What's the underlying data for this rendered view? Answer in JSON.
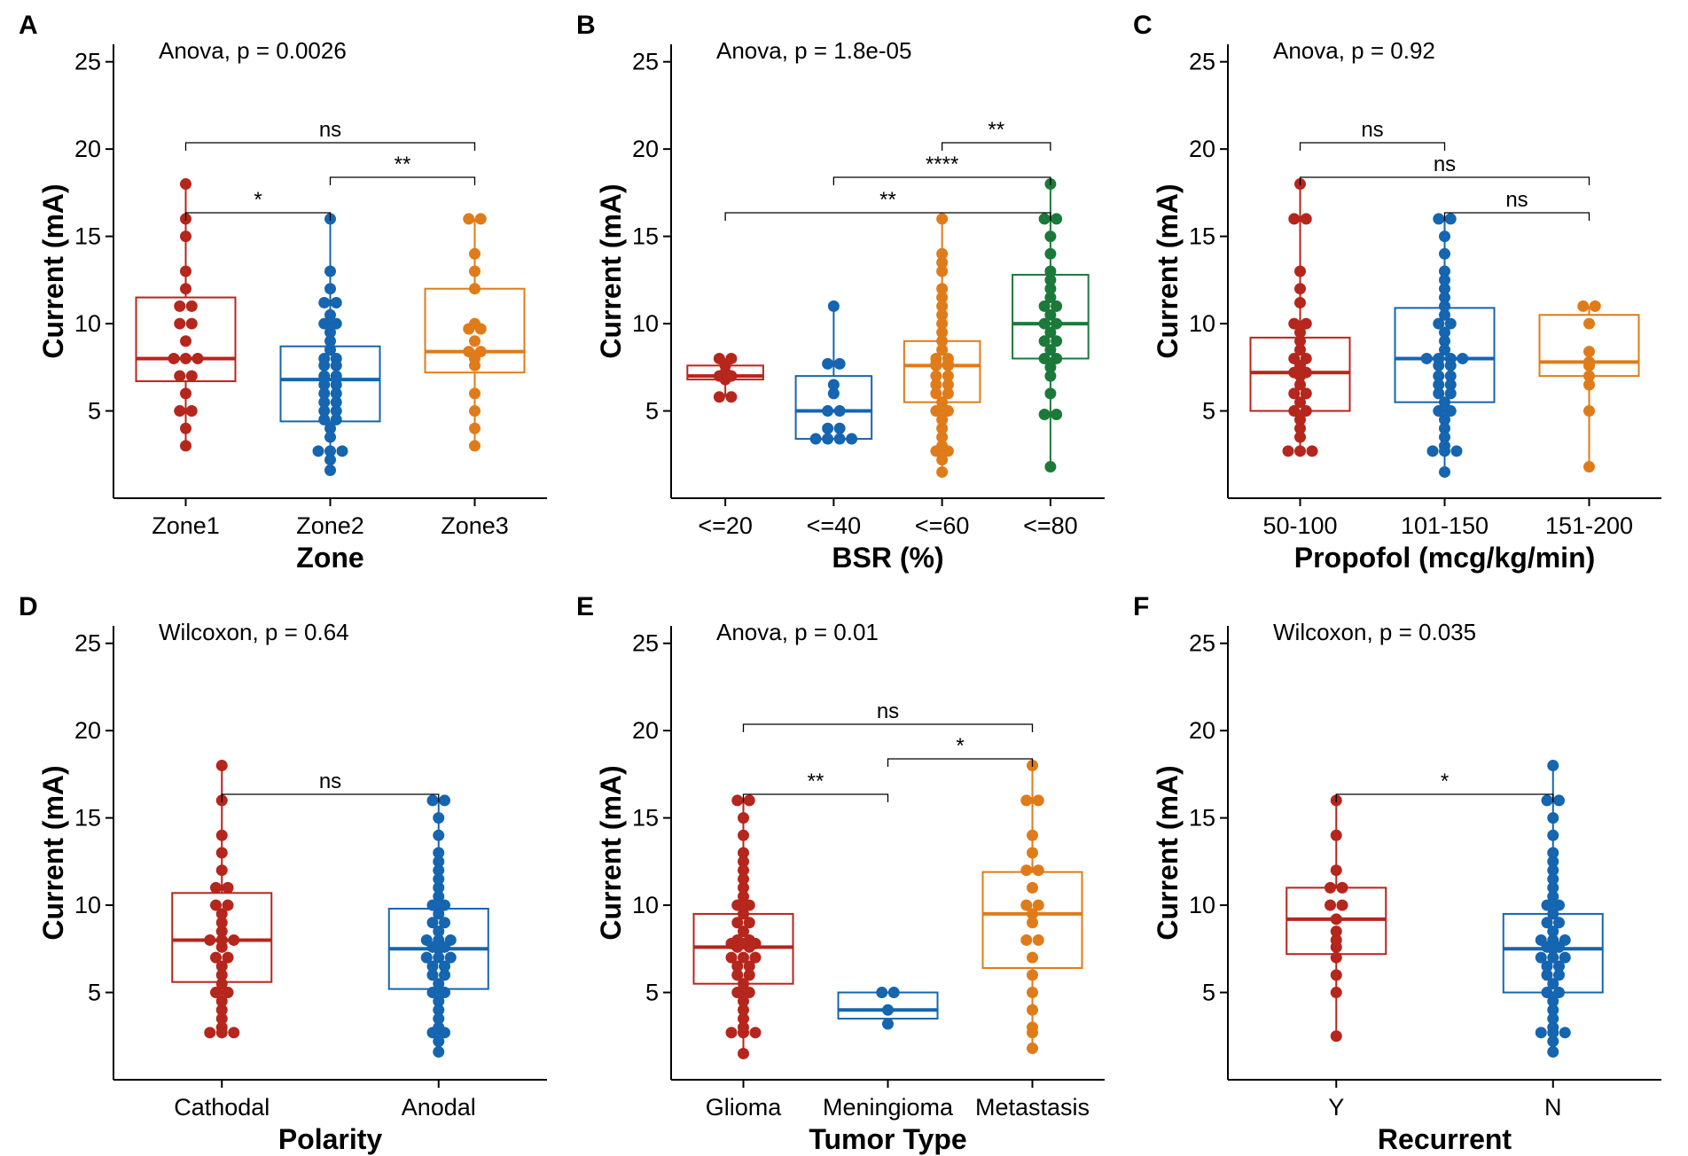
{
  "chart_data": [
    {
      "type": "boxplot",
      "letter": "A",
      "test": "Anova, p = 0.0026",
      "xlabel": "Zone",
      "ylabel": "Current (mA)",
      "ylim": [
        0,
        26
      ],
      "yticks": [
        5,
        10,
        15,
        20,
        25
      ],
      "categories": [
        "Zone1",
        "Zone2",
        "Zone3"
      ],
      "boxes": [
        {
          "color": "#b5261d",
          "q1": 6.7,
          "median": 8.0,
          "q3": 11.5,
          "lower": 3.0,
          "upper": 18.0,
          "points": [
            18,
            16,
            15,
            13,
            12,
            11,
            11,
            10,
            10,
            9,
            8,
            8,
            8,
            7,
            7,
            6,
            5,
            5,
            4,
            3
          ]
        },
        {
          "color": "#1565b0",
          "q1": 4.4,
          "median": 6.8,
          "q3": 8.7,
          "lower": 1.6,
          "upper": 16.0,
          "points": [
            16,
            13,
            12,
            11.2,
            11.2,
            10.5,
            10,
            10,
            9.5,
            9,
            8.5,
            8,
            8,
            7.6,
            7.6,
            7,
            7,
            6.5,
            6.5,
            6,
            6,
            5.5,
            5.5,
            5,
            5,
            4.5,
            4.5,
            4,
            3.5,
            2.7,
            2.7,
            2.7,
            2.2,
            1.6
          ]
        },
        {
          "color": "#e07b1a",
          "q1": 7.2,
          "median": 8.4,
          "q3": 12.0,
          "lower": 3.0,
          "upper": 16.0,
          "points": [
            16,
            16,
            14,
            13,
            12,
            10,
            9.7,
            9.7,
            9,
            8.4,
            8.4,
            8,
            7.6,
            6,
            5,
            4,
            3
          ]
        }
      ],
      "comparisons": [
        {
          "from": 0,
          "to": 2,
          "level": 2,
          "label": "ns"
        },
        {
          "from": 1,
          "to": 2,
          "level": 1,
          "label": "**"
        },
        {
          "from": 0,
          "to": 1,
          "level": 0,
          "label": "*"
        }
      ]
    },
    {
      "type": "boxplot",
      "letter": "B",
      "test": "Anova, p = 1.8e-05",
      "xlabel": "BSR (%)",
      "ylabel": "Current (mA)",
      "ylim": [
        0,
        26
      ],
      "yticks": [
        5,
        10,
        15,
        20,
        25
      ],
      "categories": [
        "<=20",
        "<=40",
        "<=60",
        "<=80"
      ],
      "boxes": [
        {
          "color": "#b5261d",
          "q1": 6.8,
          "median": 7.0,
          "q3": 7.6,
          "lower": 5.8,
          "upper": 8.0,
          "points": [
            8,
            8,
            7.6,
            7.2,
            7,
            7,
            6.8,
            5.8,
            5.8
          ]
        },
        {
          "color": "#1565b0",
          "q1": 3.4,
          "median": 5.0,
          "q3": 7.0,
          "lower": 3.4,
          "upper": 11.0,
          "points": [
            11,
            7.7,
            7.7,
            6.5,
            6,
            5,
            5,
            4,
            4,
            3.4,
            3.4,
            3.4,
            3.4
          ]
        },
        {
          "color": "#e07b1a",
          "q1": 5.5,
          "median": 7.6,
          "q3": 9.0,
          "lower": 1.5,
          "upper": 16.0,
          "points": [
            16,
            14,
            13.5,
            13,
            12,
            11.5,
            11,
            10.5,
            10,
            9.5,
            9,
            8.5,
            8,
            8,
            7.7,
            7.7,
            7.6,
            7.6,
            7,
            7,
            6.5,
            6.5,
            6,
            6,
            5.5,
            5,
            5,
            4.5,
            4,
            3.5,
            3,
            2.7,
            2.7,
            2.2,
            1.5
          ]
        },
        {
          "color": "#1b7a3a",
          "q1": 8.0,
          "median": 10.0,
          "q3": 12.8,
          "lower": 1.8,
          "upper": 18.0,
          "points": [
            18,
            16,
            16,
            15,
            14,
            13,
            12.5,
            12,
            11.5,
            11,
            11,
            10.5,
            10,
            10,
            9.5,
            9,
            9,
            8.5,
            8,
            8,
            7.5,
            7,
            6,
            4.8,
            4.8,
            1.8
          ]
        }
      ],
      "comparisons": [
        {
          "from": 2,
          "to": 3,
          "level": 2,
          "label": "**"
        },
        {
          "from": 1,
          "to": 3,
          "level": 1,
          "label": "****"
        },
        {
          "from": 0,
          "to": 3,
          "level": 0,
          "label": "**"
        }
      ]
    },
    {
      "type": "boxplot",
      "letter": "C",
      "test": "Anova, p = 0.92",
      "xlabel": "Propofol (mcg/kg/min)",
      "ylabel": "Current (mA)",
      "ylim": [
        0,
        26
      ],
      "yticks": [
        5,
        10,
        15,
        20,
        25
      ],
      "categories": [
        "50-100",
        "101-150",
        "151-200"
      ],
      "boxes": [
        {
          "color": "#b5261d",
          "q1": 5.0,
          "median": 7.2,
          "q3": 9.2,
          "lower": 2.7,
          "upper": 18.0,
          "points": [
            18,
            16,
            16,
            13,
            12,
            11.2,
            10,
            10,
            9.5,
            9,
            8.5,
            8,
            8,
            7.6,
            7.2,
            7.2,
            7,
            6.5,
            6,
            6,
            5.5,
            5,
            5,
            4.5,
            4,
            3.5,
            2.7,
            2.7,
            2.7
          ]
        },
        {
          "color": "#1565b0",
          "q1": 5.5,
          "median": 8.0,
          "q3": 10.9,
          "lower": 1.5,
          "upper": 16.0,
          "points": [
            16,
            16,
            15,
            14,
            13,
            12.5,
            12,
            11.5,
            11,
            10.5,
            10,
            10,
            9.5,
            9,
            8.5,
            8,
            8,
            8,
            8,
            7.6,
            7.6,
            7,
            7,
            6.5,
            6.5,
            6,
            6,
            5.5,
            5,
            5,
            4.5,
            4,
            3.5,
            3,
            2.7,
            2.7,
            2.7,
            1.5
          ]
        },
        {
          "color": "#e07b1a",
          "q1": 7.0,
          "median": 7.8,
          "q3": 10.5,
          "lower": 1.8,
          "upper": 11.0,
          "points": [
            11,
            11,
            10,
            8.4,
            7.8,
            7.6,
            7,
            6.5,
            5,
            1.8
          ]
        }
      ],
      "comparisons": [
        {
          "from": 0,
          "to": 1,
          "level": 2,
          "label": "ns"
        },
        {
          "from": 0,
          "to": 2,
          "level": 1,
          "label": "ns"
        },
        {
          "from": 1,
          "to": 2,
          "level": 0,
          "label": "ns"
        }
      ]
    },
    {
      "type": "boxplot",
      "letter": "D",
      "test": "Wilcoxon, p = 0.64",
      "xlabel": "Polarity",
      "ylabel": "Current (mA)",
      "ylim": [
        0,
        26
      ],
      "yticks": [
        5,
        10,
        15,
        20,
        25
      ],
      "categories": [
        "Cathodal",
        "Anodal"
      ],
      "boxes": [
        {
          "color": "#b5261d",
          "q1": 5.6,
          "median": 8.0,
          "q3": 10.7,
          "lower": 2.7,
          "upper": 18.0,
          "points": [
            18,
            16,
            14,
            13,
            12,
            11,
            11,
            10,
            10,
            9.5,
            9,
            8.5,
            8,
            8,
            8,
            7.6,
            7,
            7,
            6.5,
            6,
            5.5,
            5,
            5,
            4.5,
            4,
            3.5,
            3,
            2.7,
            2.7,
            2.7
          ]
        },
        {
          "color": "#1565b0",
          "q1": 5.2,
          "median": 7.5,
          "q3": 9.8,
          "lower": 1.6,
          "upper": 16.0,
          "points": [
            16,
            16,
            15,
            14,
            13,
            12.5,
            12,
            11.5,
            11,
            10.5,
            10,
            10,
            9.5,
            9,
            9,
            8.5,
            8,
            8,
            8,
            7.6,
            7.6,
            7.5,
            7,
            7,
            7,
            6.5,
            6.5,
            6,
            6,
            5.5,
            5,
            5,
            4.5,
            4,
            3.5,
            3,
            2.7,
            2.7,
            2.2,
            1.6
          ]
        }
      ],
      "comparisons": [
        {
          "from": 0,
          "to": 1,
          "level": 0,
          "label": "ns"
        }
      ]
    },
    {
      "type": "boxplot",
      "letter": "E",
      "test": "Anova, p = 0.01",
      "xlabel": "Tumor Type",
      "ylabel": "Current (mA)",
      "ylim": [
        0,
        26
      ],
      "yticks": [
        5,
        10,
        15,
        20,
        25
      ],
      "categories": [
        "Glioma",
        "Meningioma",
        "Metastasis"
      ],
      "boxes": [
        {
          "color": "#b5261d",
          "q1": 5.5,
          "median": 7.6,
          "q3": 9.5,
          "lower": 1.5,
          "upper": 16.0,
          "points": [
            16,
            16,
            15,
            14,
            13,
            12.5,
            12,
            11.5,
            11,
            10.5,
            10,
            10,
            9.5,
            9,
            9,
            8.5,
            8,
            8,
            7.8,
            7.8,
            7.8,
            7.6,
            7.6,
            7,
            7,
            7,
            6.5,
            6.5,
            6,
            6,
            5.5,
            5,
            5,
            4.5,
            4,
            3.5,
            3,
            2.7,
            2.7,
            2.7,
            1.5
          ]
        },
        {
          "color": "#1565b0",
          "q1": 3.5,
          "median": 4.0,
          "q3": 5.0,
          "lower": 3.2,
          "upper": 5.0,
          "points": [
            5,
            5,
            4,
            3.2
          ]
        },
        {
          "color": "#e07b1a",
          "q1": 6.4,
          "median": 9.5,
          "q3": 11.9,
          "lower": 1.8,
          "upper": 18.0,
          "points": [
            18,
            16,
            16,
            14,
            13,
            12,
            12,
            11,
            10,
            10,
            9.5,
            9,
            8,
            8,
            7,
            6,
            5,
            4,
            3,
            2.7,
            1.8
          ]
        }
      ],
      "comparisons": [
        {
          "from": 0,
          "to": 2,
          "level": 2,
          "label": "ns"
        },
        {
          "from": 1,
          "to": 2,
          "level": 1,
          "label": "*"
        },
        {
          "from": 0,
          "to": 1,
          "level": 0,
          "label": "**"
        }
      ]
    },
    {
      "type": "boxplot",
      "letter": "F",
      "test": "Wilcoxon, p = 0.035",
      "xlabel": "Recurrent",
      "ylabel": "Current (mA)",
      "ylim": [
        0,
        26
      ],
      "yticks": [
        5,
        10,
        15,
        20,
        25
      ],
      "categories": [
        "Y",
        "N"
      ],
      "boxes": [
        {
          "color": "#b5261d",
          "q1": 7.2,
          "median": 9.2,
          "q3": 11.0,
          "lower": 2.5,
          "upper": 16.0,
          "points": [
            16,
            14,
            12,
            11,
            11,
            10,
            10,
            9.2,
            8.5,
            8,
            7.6,
            7,
            6,
            5,
            2.5
          ]
        },
        {
          "color": "#1565b0",
          "q1": 5.0,
          "median": 7.5,
          "q3": 9.5,
          "lower": 1.6,
          "upper": 18.0,
          "points": [
            18,
            16,
            16,
            15,
            14,
            13,
            12.5,
            12,
            11.5,
            11,
            10.5,
            10,
            10,
            9.5,
            9,
            9,
            8.5,
            8,
            8,
            8,
            7.6,
            7.6,
            7.5,
            7,
            7,
            7,
            6.5,
            6.5,
            6,
            6,
            5.5,
            5,
            5,
            4.5,
            4,
            3.5,
            3,
            2.7,
            2.7,
            2.7,
            2.2,
            1.6
          ]
        }
      ],
      "comparisons": [
        {
          "from": 0,
          "to": 1,
          "level": 0,
          "label": "*"
        }
      ]
    }
  ]
}
